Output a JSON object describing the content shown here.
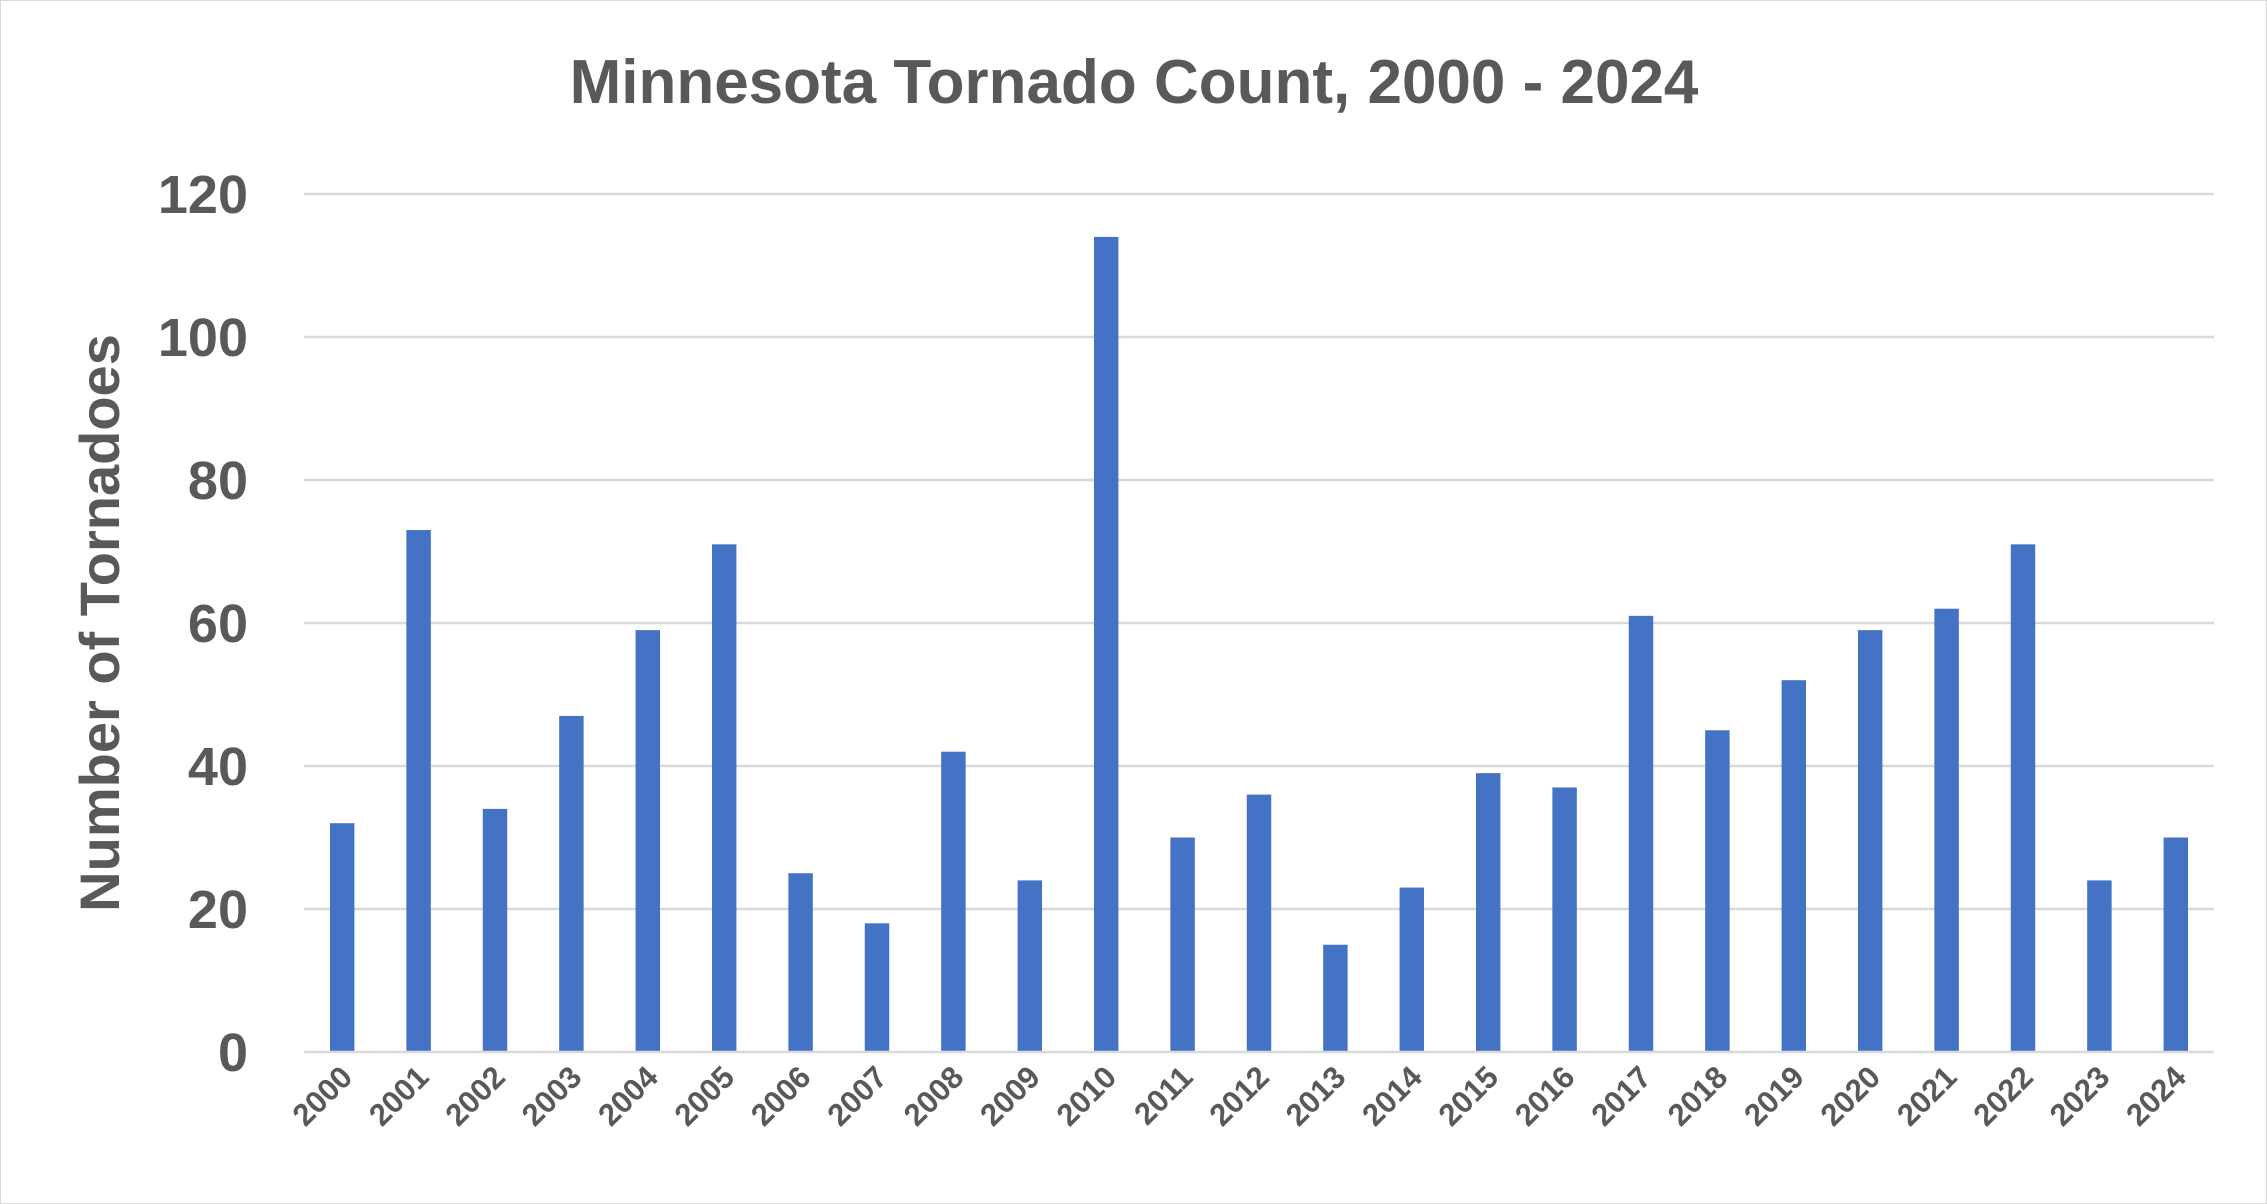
{
  "chart_data": {
    "type": "bar",
    "title": "Minnesota Tornado Count, 2000 - 2024",
    "xlabel": "",
    "ylabel": "Number of Tornadoes",
    "ylim": [
      0,
      120
    ],
    "yticks": [
      "0",
      "20",
      "40",
      "60",
      "80",
      "100",
      "120"
    ],
    "ytick_values": [
      0,
      20,
      40,
      60,
      80,
      100,
      120
    ],
    "grid": true,
    "legend": "none",
    "bar_color": "#4472C4",
    "categories": [
      "2000",
      "2001",
      "2002",
      "2003",
      "2004",
      "2005",
      "2006",
      "2007",
      "2008",
      "2009",
      "2010",
      "2011",
      "2012",
      "2013",
      "2014",
      "2015",
      "2016",
      "2017",
      "2018",
      "2019",
      "2020",
      "2021",
      "2022",
      "2023",
      "2024"
    ],
    "values": [
      32,
      73,
      34,
      47,
      59,
      71,
      25,
      18,
      42,
      24,
      114,
      30,
      36,
      15,
      23,
      39,
      37,
      61,
      45,
      52,
      59,
      62,
      71,
      24,
      30
    ]
  }
}
